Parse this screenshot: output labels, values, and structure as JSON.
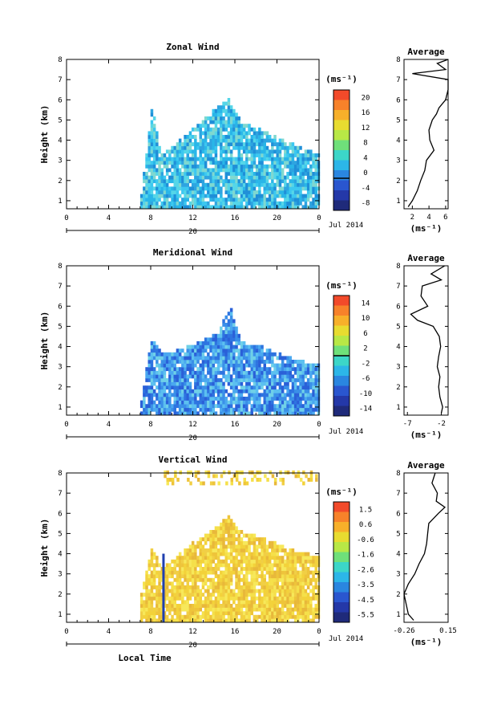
{
  "figure": {
    "x_label": "Local Time",
    "date_label": "Jul 2014",
    "date_marker": "20",
    "avg_title": "Average",
    "unit": "(ms⁻¹)"
  },
  "chart_data": [
    {
      "type": "heatmap",
      "title": "Zonal Wind",
      "ylabel": "Height (km)",
      "xlabel": "",
      "xlim": [
        0,
        24
      ],
      "x_ticks": [
        "0",
        "4",
        "8",
        "12",
        "16",
        "20",
        "0"
      ],
      "ylim": [
        0.6,
        8
      ],
      "y_ticks": [
        "1",
        "2",
        "3",
        "4",
        "5",
        "6",
        "7",
        "8"
      ],
      "data_extent": {
        "x_start": 7,
        "x_end": 24,
        "top_by_hour": [
          [
            7,
            1.2
          ],
          [
            8,
            5.5
          ],
          [
            9,
            3.2
          ],
          [
            12,
            4.5
          ],
          [
            14,
            5.5
          ],
          [
            15.3,
            6
          ],
          [
            16.5,
            4.8
          ],
          [
            18,
            4.5
          ],
          [
            20,
            4
          ],
          [
            22,
            3.6
          ],
          [
            24,
            3.2
          ]
        ]
      },
      "colorbar": {
        "unit": "(ms⁻¹)",
        "ticks": [
          "20",
          "16",
          "12",
          "8",
          "4",
          "0",
          "-4",
          "-8"
        ],
        "min": -8,
        "max": 22,
        "zero_line": 0
      },
      "dominant_value_range": [
        2,
        8
      ],
      "average_profile": {
        "title": "Average",
        "xlabel": "(ms⁻¹)",
        "x_ticks": [
          "2",
          "4",
          "6"
        ],
        "xlim": [
          1,
          6.3
        ],
        "height": [
          0.7,
          1.0,
          1.5,
          2.0,
          2.5,
          3.0,
          3.5,
          4.0,
          4.5,
          5.0,
          5.3,
          5.6,
          6.0,
          6.5,
          7.0,
          7.3,
          7.5,
          7.8,
          8.0
        ],
        "value": [
          1.5,
          2.0,
          2.6,
          3.0,
          3.5,
          3.7,
          4.6,
          4.1,
          4.0,
          4.4,
          4.9,
          5.2,
          6.0,
          6.3,
          6.3,
          2.0,
          6.0,
          5.0,
          6.3
        ]
      }
    },
    {
      "type": "heatmap",
      "title": "Meridional Wind",
      "ylabel": "Height (km)",
      "xlabel": "",
      "xlim": [
        0,
        24
      ],
      "x_ticks": [
        "0",
        "4",
        "8",
        "12",
        "16",
        "20",
        "0"
      ],
      "ylim": [
        0.6,
        8
      ],
      "y_ticks": [
        "1",
        "2",
        "3",
        "4",
        "5",
        "6",
        "7",
        "8"
      ],
      "data_extent": {
        "x_start": 7,
        "x_end": 24,
        "top_by_hour": [
          [
            7,
            1.2
          ],
          [
            8,
            4.5
          ],
          [
            9,
            3.5
          ],
          [
            12,
            4
          ],
          [
            14,
            4.5
          ],
          [
            15.5,
            5.8
          ],
          [
            16.5,
            4.2
          ],
          [
            18,
            4
          ],
          [
            20,
            3.6
          ],
          [
            22,
            3.2
          ],
          [
            24,
            3.0
          ]
        ]
      },
      "colorbar": {
        "unit": "(ms⁻¹)",
        "ticks": [
          "14",
          "10",
          "6",
          "2",
          "-2",
          "-6",
          "-10",
          "-14"
        ],
        "min": -16,
        "max": 16,
        "zero_line": 0
      },
      "dominant_value_range": [
        -8,
        -2
      ],
      "average_profile": {
        "title": "Average",
        "xlabel": "(ms⁻¹)",
        "x_ticks": [
          "-7",
          "-2"
        ],
        "xlim": [
          -7.5,
          -1
        ],
        "height": [
          0.7,
          1.0,
          1.5,
          2.0,
          2.5,
          3.0,
          3.5,
          4.0,
          4.5,
          5.0,
          5.3,
          5.6,
          6.0,
          6.5,
          7.0,
          7.3,
          7.6,
          8.0
        ],
        "value": [
          -2.0,
          -1.8,
          -2.2,
          -2.4,
          -2.2,
          -2.6,
          -2.4,
          -2.1,
          -2.3,
          -3.2,
          -5.5,
          -6.5,
          -4.0,
          -5.0,
          -4.8,
          -2.0,
          -3.5,
          -1.5
        ]
      }
    },
    {
      "type": "heatmap",
      "title": "Vertical Wind",
      "ylabel": "Height (km)",
      "xlabel": "Local Time",
      "xlim": [
        0,
        24
      ],
      "x_ticks": [
        "0",
        "4",
        "8",
        "12",
        "16",
        "20",
        "0"
      ],
      "ylim": [
        0.6,
        8
      ],
      "y_ticks": [
        "1",
        "2",
        "3",
        "4",
        "5",
        "6",
        "7",
        "8"
      ],
      "data_extent": {
        "x_start": 7,
        "x_end": 24,
        "top_by_hour": [
          [
            7,
            2.0
          ],
          [
            8,
            4.2
          ],
          [
            9,
            3.2
          ],
          [
            12,
            4.5
          ],
          [
            14,
            5.2
          ],
          [
            15.3,
            5.8
          ],
          [
            16.5,
            5
          ],
          [
            18,
            4.8
          ],
          [
            20,
            4.4
          ],
          [
            22,
            4.0
          ],
          [
            24,
            3.8
          ]
        ]
      },
      "colorbar": {
        "unit": "(ms⁻¹)",
        "ticks": [
          "1.5",
          "0.6",
          "-0.6",
          "-1.6",
          "-2.6",
          "-3.5",
          "-4.5",
          "-5.5"
        ],
        "min": -6,
        "max": 2,
        "zero_line": null
      },
      "dominant_value_range": [
        -0.6,
        1.0
      ],
      "average_profile": {
        "title": "Average",
        "xlabel": "(ms⁻¹)",
        "x_ticks": [
          "-0.26",
          "0.15"
        ],
        "xlim": [
          -0.26,
          0.15
        ],
        "height": [
          0.7,
          1.0,
          1.5,
          2.0,
          2.5,
          3.0,
          3.5,
          4.0,
          4.5,
          5.0,
          5.5,
          6.0,
          6.3,
          6.6,
          7.0,
          7.5,
          8.0
        ],
        "value": [
          -0.17,
          -0.22,
          -0.24,
          -0.26,
          -0.22,
          -0.16,
          -0.12,
          -0.07,
          -0.05,
          -0.04,
          -0.03,
          0.06,
          0.12,
          0.04,
          0.05,
          0.0,
          0.03
        ]
      }
    }
  ]
}
